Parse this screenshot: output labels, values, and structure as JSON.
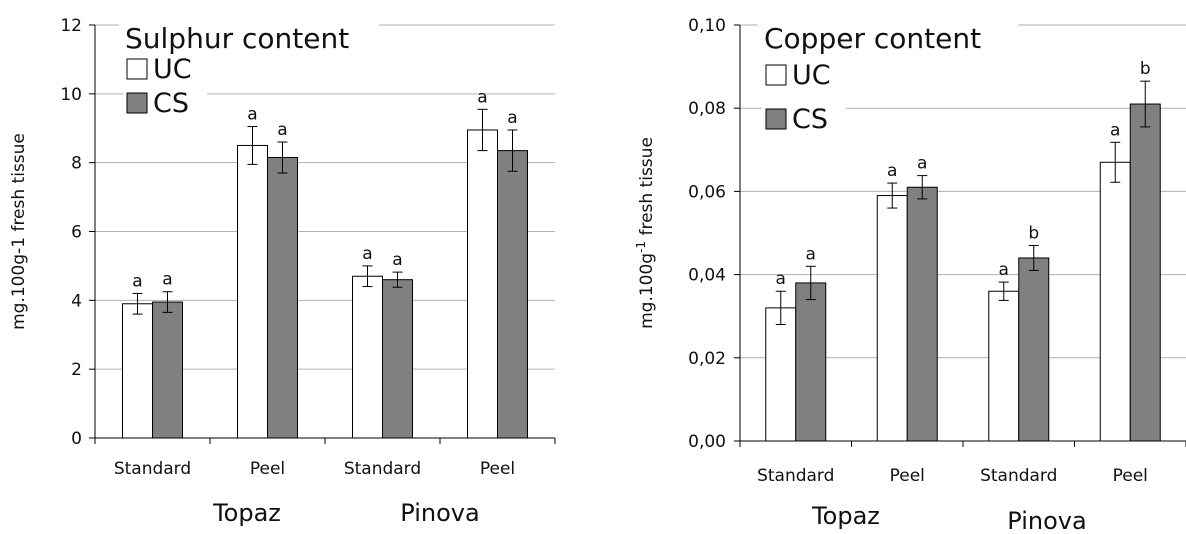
{
  "chart_data": [
    {
      "type": "bar",
      "title": "Sulphur content",
      "ylabel": "mg.100g-1 fresh tissue",
      "ylabel_sup": "",
      "ylim": [
        0,
        12
      ],
      "yticks": [
        0,
        2,
        4,
        6,
        8,
        10,
        12
      ],
      "ytick_labels": [
        "0",
        "2",
        "4",
        "6",
        "8",
        "10",
        "12"
      ],
      "grid": true,
      "legend": "top-left",
      "categories": [
        "Standard",
        "Peel",
        "Standard",
        "Peel"
      ],
      "groups": [
        {
          "label": "Topaz",
          "span": [
            0,
            1
          ]
        },
        {
          "label": "Pinova",
          "span": [
            2,
            3
          ]
        }
      ],
      "series": [
        {
          "name": "UC",
          "color": "#ffffff",
          "values": [
            3.9,
            8.5,
            4.7,
            8.95
          ],
          "errors": [
            0.3,
            0.55,
            0.3,
            0.6
          ],
          "labels": [
            "a",
            "a",
            "a",
            "a"
          ]
        },
        {
          "name": "CS",
          "color": "#808080",
          "values": [
            3.95,
            8.15,
            4.6,
            8.35
          ],
          "errors": [
            0.3,
            0.45,
            0.22,
            0.6
          ],
          "labels": [
            "a",
            "a",
            "a",
            "a"
          ]
        }
      ]
    },
    {
      "type": "bar",
      "title": "Copper content",
      "ylabel": "mg.100g",
      "ylabel_sup": "-1",
      "ylabel_tail": " fresh tissue",
      "ylim": [
        0,
        0.1
      ],
      "yticks": [
        0,
        0.02,
        0.04,
        0.06,
        0.08,
        0.1
      ],
      "ytick_labels": [
        "0,00",
        "0,02",
        "0,04",
        "0,06",
        "0,08",
        "0,10"
      ],
      "grid": true,
      "legend": "top-left",
      "categories": [
        "Standard",
        "Peel",
        "Standard",
        "Peel"
      ],
      "groups": [
        {
          "label": "Topaz",
          "span": [
            0,
            1
          ]
        },
        {
          "label": "Pinova",
          "span": [
            2,
            3
          ]
        }
      ],
      "series": [
        {
          "name": "UC",
          "color": "#ffffff",
          "values": [
            0.032,
            0.059,
            0.036,
            0.067
          ],
          "errors": [
            0.004,
            0.003,
            0.0022,
            0.0048
          ],
          "labels": [
            "a",
            "a",
            "a",
            "a"
          ]
        },
        {
          "name": "CS",
          "color": "#808080",
          "values": [
            0.038,
            0.061,
            0.044,
            0.081
          ],
          "errors": [
            0.004,
            0.0028,
            0.003,
            0.0055
          ],
          "labels": [
            "a",
            "a",
            "b",
            "b"
          ]
        }
      ]
    }
  ]
}
